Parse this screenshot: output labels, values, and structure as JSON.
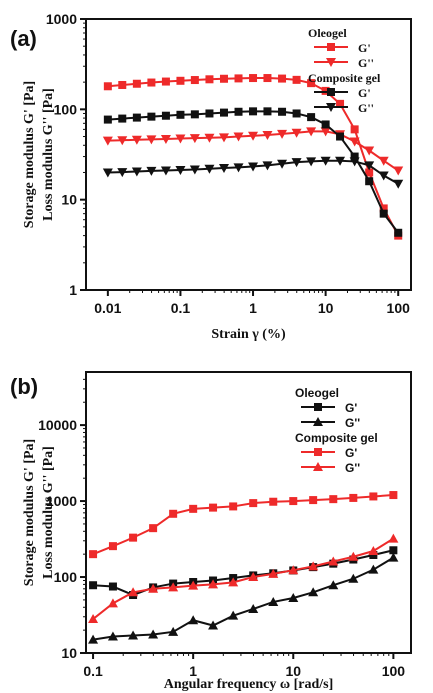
{
  "chart_data": [
    {
      "panel_label": "(a)",
      "type": "line",
      "xscale": "log",
      "yscale": "log",
      "xlim": [
        0.005,
        150
      ],
      "ylim": [
        1,
        1000
      ],
      "xlabel": "Strain γ (%)",
      "ylabel_line1": "Storage modulus G' [Pa]",
      "ylabel_line2": "Loss modulus G'' [Pa]",
      "xticks": [
        0.01,
        0.1,
        1,
        10,
        100
      ],
      "xtick_labels": [
        "0.01",
        "0.1",
        "1",
        "10",
        "100"
      ],
      "yticks": [
        1,
        10,
        100,
        1000
      ],
      "ytick_labels": [
        "1",
        "10",
        "100",
        "1000"
      ],
      "grid": false,
      "legend_placement": "top-right",
      "legend": [
        {
          "type": "header",
          "text": "Oleogel"
        },
        {
          "type": "series",
          "series": 0,
          "text": "G'"
        },
        {
          "type": "series",
          "series": 1,
          "text": "G''"
        },
        {
          "type": "header",
          "text": "Composite gel"
        },
        {
          "type": "series",
          "series": 2,
          "text": "G'"
        },
        {
          "type": "series",
          "series": 3,
          "text": "G''"
        }
      ],
      "x": [
        0.01,
        0.0158,
        0.0251,
        0.0398,
        0.0631,
        0.1,
        0.158,
        0.251,
        0.398,
        0.631,
        1,
        1.58,
        2.51,
        3.98,
        6.31,
        10,
        15.8,
        25.1,
        39.8,
        63.1,
        100
      ],
      "series": [
        {
          "name": "G'",
          "group": "Oleogel",
          "color": "#ee2a2a",
          "marker": "square",
          "values": [
            180,
            186,
            192,
            198,
            203,
            207,
            211,
            215,
            218,
            220,
            222,
            222,
            219,
            212,
            195,
            160,
            115,
            60,
            20,
            8,
            4
          ]
        },
        {
          "name": "G''",
          "group": "Oleogel",
          "color": "#ee2a2a",
          "marker": "triangle-down",
          "values": [
            45,
            45.5,
            46,
            46.5,
            47,
            47.5,
            48,
            48.5,
            49,
            50,
            51,
            52,
            53.5,
            55,
            57,
            57,
            53,
            44,
            35,
            27,
            21
          ]
        },
        {
          "name": "G'",
          "group": "Composite gel",
          "color": "#111111",
          "marker": "square",
          "values": [
            77,
            79,
            81,
            83,
            85,
            87,
            88,
            90,
            92,
            94,
            95,
            95,
            94,
            90,
            82,
            68,
            50,
            30,
            16,
            7,
            4.3
          ]
        },
        {
          "name": "G''",
          "group": "Composite gel",
          "color": "#111111",
          "marker": "triangle-down",
          "values": [
            20,
            20.2,
            20.5,
            20.8,
            21,
            21.3,
            21.6,
            22,
            22.4,
            22.8,
            23.3,
            24,
            25,
            26,
            26.5,
            27,
            27,
            26.5,
            24,
            18.5,
            15
          ]
        }
      ]
    },
    {
      "panel_label": "(b)",
      "type": "line",
      "xscale": "log",
      "yscale": "log",
      "xlim": [
        0.085,
        150
      ],
      "ylim": [
        10,
        50000
      ],
      "xlabel": "Angular frequency ω [rad/s]",
      "ylabel_line1": "Storage modulus G' [Pa]",
      "ylabel_line2": "Loss modulus G'' [Pa]",
      "xticks": [
        0.1,
        1,
        10,
        100
      ],
      "xtick_labels": [
        "0.1",
        "1",
        "10",
        "100"
      ],
      "yticks": [
        10,
        100,
        1000,
        10000
      ],
      "ytick_labels": [
        "10",
        "100",
        "1000",
        "10000"
      ],
      "grid": false,
      "legend_placement": "top-right",
      "legend": [
        {
          "type": "header",
          "text": "Oleogel"
        },
        {
          "type": "series",
          "series": 0,
          "text": "G'"
        },
        {
          "type": "series",
          "series": 1,
          "text": "G''"
        },
        {
          "type": "header",
          "text": "Composite gel"
        },
        {
          "type": "series",
          "series": 2,
          "text": "G'"
        },
        {
          "type": "series",
          "series": 3,
          "text": "G''"
        }
      ],
      "x": [
        0.1,
        0.158,
        0.251,
        0.398,
        0.631,
        1,
        1.58,
        2.51,
        3.98,
        6.31,
        10,
        15.8,
        25.1,
        39.8,
        63.1,
        100
      ],
      "series": [
        {
          "name": "G'",
          "group": "Oleogel",
          "color": "#111111",
          "marker": "square",
          "values": [
            78,
            75,
            58,
            73,
            82,
            86,
            90,
            97,
            105,
            112,
            122,
            135,
            150,
            170,
            195,
            225
          ]
        },
        {
          "name": "G''",
          "group": "Oleogel",
          "color": "#111111",
          "marker": "triangle-up",
          "values": [
            15,
            16.5,
            17,
            17.5,
            19,
            27,
            23,
            31,
            38,
            47,
            53,
            63,
            78,
            95,
            125,
            180
          ]
        },
        {
          "name": "G'",
          "group": "Composite gel",
          "color": "#ee2a2a",
          "marker": "square",
          "values": [
            200,
            255,
            330,
            440,
            680,
            790,
            820,
            850,
            940,
            980,
            1000,
            1030,
            1060,
            1100,
            1150,
            1200
          ]
        },
        {
          "name": "G''",
          "group": "Composite gel",
          "color": "#ee2a2a",
          "marker": "triangle-up",
          "values": [
            28,
            45,
            63,
            70,
            73,
            77,
            80,
            85,
            100,
            110,
            123,
            138,
            160,
            185,
            220,
            320
          ]
        }
      ]
    }
  ]
}
